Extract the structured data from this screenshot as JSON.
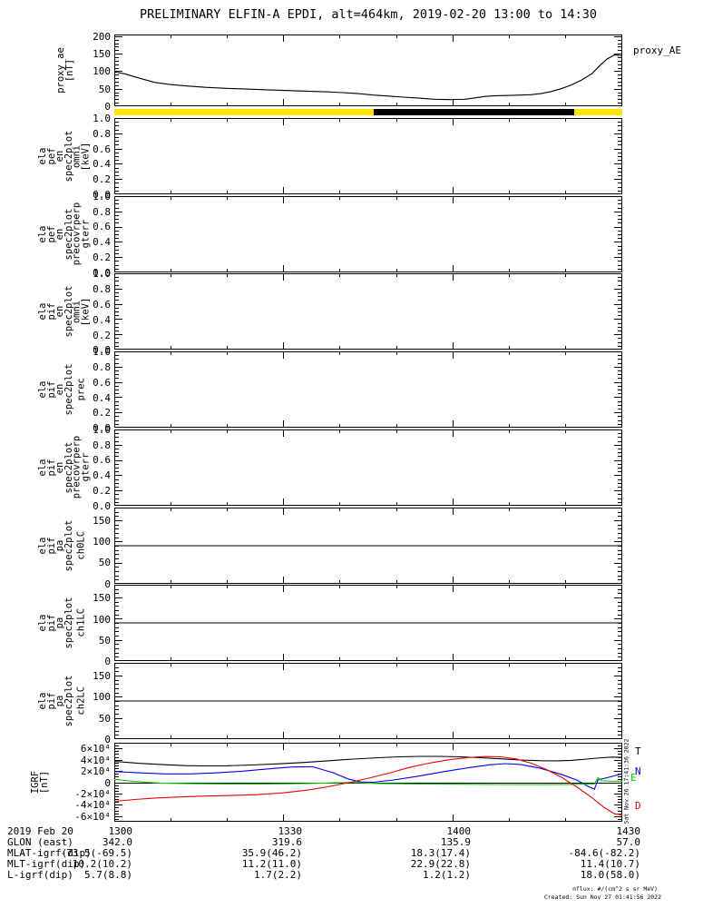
{
  "title": "PRELIMINARY ELFIN-A EPDI, alt=464km, 2019-02-20 13:00 to 14:30",
  "colors": {
    "axis": "#000000",
    "bar_yellow": "#ffe400",
    "bar_black": "#000000",
    "trace_black": "#000000",
    "trace_blue": "#0000ee",
    "trace_green": "#00cc00",
    "trace_red": "#ee0000"
  },
  "status_bar": {
    "segments": [
      {
        "color": "#ffe400",
        "from": 0.0,
        "to": 0.511
      },
      {
        "color": "#000000",
        "from": 0.511,
        "to": 0.905
      },
      {
        "color": "#ffe400",
        "from": 0.905,
        "to": 1.0
      }
    ]
  },
  "xaxis": {
    "tick_labels": [
      "1300",
      "1330",
      "1400",
      "1430"
    ],
    "major_fracs": [
      0,
      0.3333,
      0.6667,
      1
    ],
    "minor_divisions": 9
  },
  "vertical_timestamp": "Sat Nov 26 17:41:36 2022",
  "footer": {
    "row_labels": [
      "2019 Feb 20",
      "GLON (east)",
      "MLAT-igrf(dip)",
      "MLT-igrf(dip)",
      "L-igrf(dip)"
    ],
    "columns": [
      {
        "values": [
          "1300",
          "342.0",
          "-73.5(-69.5)",
          "10.2(10.2)",
          "5.7(8.8)"
        ]
      },
      {
        "values": [
          "1330",
          "319.6",
          "35.9(46.2)",
          "11.2(11.0)",
          "1.7(2.2)"
        ]
      },
      {
        "values": [
          "1400",
          "135.9",
          "18.3(17.4)",
          "22.9(22.8)",
          "1.2(1.2)"
        ]
      },
      {
        "values": [
          "1430",
          "57.0",
          "-84.6(-82.2)",
          "11.4(10.7)",
          "18.0(58.0)"
        ]
      }
    ],
    "nflux": "nflux: #/(cm^2 s sr MeV)",
    "created": "Created: Sun Nov 27 01:41:56 2022"
  },
  "chart_data": [
    {
      "id": "proxy_ae",
      "type": "line",
      "ylabel_lines": [
        "proxy_ae",
        "[nT]"
      ],
      "ylim": [
        0,
        205
      ],
      "ytick_values": [
        0,
        50,
        100,
        150,
        200
      ],
      "ytick_labels": [
        "0",
        "50",
        "100",
        "150",
        "200"
      ],
      "y_minor_step": 10,
      "legend": {
        "label": "proxy_AE",
        "color": "#000000"
      },
      "series": [
        {
          "name": "proxy_AE",
          "color": "#000000",
          "x": [
            0,
            0.02,
            0.05,
            0.08,
            0.11,
            0.14,
            0.18,
            0.22,
            0.26,
            0.3,
            0.34,
            0.38,
            0.42,
            0.45,
            0.48,
            0.51,
            0.54,
            0.57,
            0.6,
            0.63,
            0.66,
            0.69,
            0.71,
            0.73,
            0.75,
            0.78,
            0.8,
            0.82,
            0.84,
            0.86,
            0.88,
            0.9,
            0.92,
            0.94,
            0.955,
            0.97,
            0.985,
            1.0
          ],
          "y": [
            98,
            93,
            80,
            68,
            62,
            58,
            54,
            51,
            49,
            47,
            45,
            43,
            41,
            39,
            36,
            32,
            29,
            26,
            23,
            20,
            19,
            20,
            24,
            28,
            30,
            31,
            32,
            33,
            36,
            42,
            50,
            61,
            75,
            93,
            115,
            135,
            147,
            144
          ]
        }
      ]
    },
    {
      "id": "ela_pef_en_omni",
      "type": "spec2plot-empty",
      "ylabel_outer": [
        "ela",
        "pef",
        "en",
        "spec2plot"
      ],
      "ylabel_inner": [
        "omni",
        "[keV]"
      ],
      "ylim": [
        0,
        1
      ],
      "ytick_values": [
        0,
        0.2,
        0.4,
        0.6,
        0.8,
        1.0
      ],
      "ytick_labels": [
        "0.0",
        "0.2",
        "0.4",
        "0.6",
        "0.8",
        "1.0"
      ],
      "y_minor_step": 0.05,
      "series": []
    },
    {
      "id": "ela_pef_en_precovrperp_gterr",
      "type": "spec2plot-empty",
      "ylabel_outer": [
        "ela",
        "pef",
        "en",
        "spec2plot"
      ],
      "ylabel_inner": [
        "precovrperp",
        "gterr"
      ],
      "ylim": [
        0,
        1
      ],
      "ytick_values": [
        0,
        0.2,
        0.4,
        0.6,
        0.8,
        1.0
      ],
      "ytick_labels": [
        "0.0",
        "0.2",
        "0.4",
        "0.6",
        "0.8",
        "1.0"
      ],
      "y_minor_step": 0.05,
      "series": []
    },
    {
      "id": "ela_pif_en_omni",
      "type": "spec2plot-empty",
      "ylabel_outer": [
        "ela",
        "pif",
        "en",
        "spec2plot"
      ],
      "ylabel_inner": [
        "omni",
        "[keV]"
      ],
      "ylim": [
        0,
        1
      ],
      "ytick_values": [
        0,
        0.2,
        0.4,
        0.6,
        0.8,
        1.0
      ],
      "ytick_labels": [
        "0.0",
        "0.2",
        "0.4",
        "0.6",
        "0.8",
        "1.0"
      ],
      "y_minor_step": 0.05,
      "series": []
    },
    {
      "id": "ela_pif_en_prec",
      "type": "spec2plot-empty",
      "ylabel_outer": [
        "ela",
        "pif",
        "en",
        "spec2plot"
      ],
      "ylabel_inner": [
        "prec"
      ],
      "ylim": [
        0,
        1
      ],
      "ytick_values": [
        0,
        0.2,
        0.4,
        0.6,
        0.8,
        1.0
      ],
      "ytick_labels": [
        "0.0",
        "0.2",
        "0.4",
        "0.6",
        "0.8",
        "1.0"
      ],
      "y_minor_step": 0.05,
      "series": []
    },
    {
      "id": "ela_pif_en_precovrperp_gterr",
      "type": "spec2plot-empty",
      "ylabel_outer": [
        "ela",
        "pif",
        "en",
        "spec2plot"
      ],
      "ylabel_inner": [
        "precovrperp",
        "gterr"
      ],
      "ylim": [
        0,
        1
      ],
      "ytick_values": [
        0,
        0.2,
        0.4,
        0.6,
        0.8,
        1.0
      ],
      "ytick_labels": [
        "0.0",
        "0.2",
        "0.4",
        "0.6",
        "0.8",
        "1.0"
      ],
      "y_minor_step": 0.05,
      "series": []
    },
    {
      "id": "ela_pif_pa_ch0LC",
      "type": "line",
      "ylabel_outer": [
        "ela",
        "pif",
        "pa",
        "spec2plot"
      ],
      "ylabel_inner": [
        "ch0LC"
      ],
      "ylim": [
        0,
        180
      ],
      "ytick_values": [
        0,
        50,
        100,
        150
      ],
      "ytick_labels": [
        "0",
        "50",
        "100",
        "150"
      ],
      "y_minor_step": 10,
      "series": [
        {
          "name": "loss-cone-90deg",
          "color": "#000000",
          "x": [
            0,
            1
          ],
          "y": [
            90,
            90
          ]
        }
      ]
    },
    {
      "id": "ela_pif_pa_ch1LC",
      "type": "line",
      "ylabel_outer": [
        "ela",
        "pif",
        "pa",
        "spec2plot"
      ],
      "ylabel_inner": [
        "ch1LC"
      ],
      "ylim": [
        0,
        180
      ],
      "ytick_values": [
        0,
        50,
        100,
        150
      ],
      "ytick_labels": [
        "0",
        "50",
        "100",
        "150"
      ],
      "y_minor_step": 10,
      "series": [
        {
          "name": "loss-cone-90deg",
          "color": "#000000",
          "x": [
            0,
            1
          ],
          "y": [
            90,
            90
          ]
        }
      ]
    },
    {
      "id": "ela_pif_pa_ch2LC",
      "type": "line",
      "ylabel_outer": [
        "ela",
        "pif",
        "pa",
        "spec2plot"
      ],
      "ylabel_inner": [
        "ch2LC"
      ],
      "ylim": [
        0,
        180
      ],
      "ytick_values": [
        0,
        50,
        100,
        150
      ],
      "ytick_labels": [
        "0",
        "50",
        "100",
        "150"
      ],
      "y_minor_step": 10,
      "series": [
        {
          "name": "loss-cone-90deg",
          "color": "#000000",
          "x": [
            0,
            1
          ],
          "y": [
            90,
            90
          ]
        }
      ]
    },
    {
      "id": "igrf",
      "type": "line",
      "ylabel_lines": [
        "IGRF",
        "[nT]"
      ],
      "ylim": [
        -70000,
        70000
      ],
      "ytick_values": [
        -60000,
        -40000,
        -20000,
        0,
        20000,
        40000,
        60000
      ],
      "ytick_labels": [
        "-6×10⁴",
        "-4×10⁴",
        "-2×10⁴",
        "0",
        "2×10⁴",
        "4×10⁴",
        "6×10⁴"
      ],
      "y_minor_step": 5000,
      "zero_line": true,
      "legend_entries": [
        {
          "label": "T",
          "color": "#000000"
        },
        {
          "label": "N",
          "color": "#0000ee"
        },
        {
          "label": "E",
          "color": "#00cc00"
        },
        {
          "label": "D",
          "color": "#ee0000"
        }
      ],
      "series": [
        {
          "name": "T",
          "color": "#000000",
          "x": [
            0,
            0.05,
            0.1,
            0.14,
            0.18,
            0.22,
            0.27,
            0.32,
            0.37,
            0.42,
            0.47,
            0.52,
            0.56,
            0.6,
            0.64,
            0.68,
            0.72,
            0.76,
            0.8,
            0.84,
            0.87,
            0.9,
            0.93,
            0.96,
            0.98,
            1.0
          ],
          "y": [
            37000,
            33500,
            31000,
            29500,
            29000,
            29200,
            30500,
            32500,
            35000,
            38000,
            41000,
            43500,
            45000,
            45800,
            45800,
            45000,
            43500,
            41500,
            39500,
            38200,
            38000,
            38800,
            41000,
            43500,
            44500,
            44000
          ]
        },
        {
          "name": "N",
          "color": "#0000ee",
          "x": [
            0,
            0.05,
            0.1,
            0.15,
            0.2,
            0.25,
            0.3,
            0.35,
            0.39,
            0.43,
            0.46,
            0.485,
            0.51,
            0.55,
            0.6,
            0.65,
            0.7,
            0.74,
            0.77,
            0.8,
            0.84,
            0.88,
            0.91,
            0.93,
            0.945,
            0.952,
            0.97,
            1.0
          ],
          "y": [
            19000,
            16500,
            14800,
            14800,
            16500,
            19500,
            23500,
            27000,
            27500,
            17000,
            6000,
            500,
            0,
            4000,
            11000,
            19000,
            26000,
            31000,
            33000,
            31500,
            24500,
            14000,
            4000,
            -6000,
            -12500,
            4000,
            8000,
            15000
          ]
        },
        {
          "name": "E",
          "color": "#00cc00",
          "x": [
            0,
            0.04,
            0.09,
            0.15,
            0.22,
            0.3,
            0.38,
            0.44,
            0.475,
            0.52,
            0.6,
            0.68,
            0.76,
            0.84,
            0.9,
            0.935,
            0.945,
            0.952,
            0.96,
            0.98,
            1.0
          ],
          "y": [
            5000,
            1500,
            -1500,
            -2500,
            -3000,
            -3000,
            -2200,
            -800,
            -300,
            -2200,
            -3200,
            -3500,
            -4000,
            -4200,
            -3800,
            -3000,
            -3000,
            8000,
            2500,
            2000,
            2000
          ]
        },
        {
          "name": "D",
          "color": "#ee0000",
          "x": [
            0,
            0.04,
            0.08,
            0.13,
            0.18,
            0.23,
            0.28,
            0.33,
            0.38,
            0.42,
            0.46,
            0.5,
            0.54,
            0.58,
            0.62,
            0.66,
            0.7,
            0.73,
            0.76,
            0.79,
            0.82,
            0.85,
            0.88,
            0.91,
            0.94,
            0.965,
            0.985,
            1.0
          ],
          "y": [
            -34000,
            -30500,
            -28000,
            -26000,
            -24500,
            -23500,
            -22000,
            -19000,
            -14000,
            -8000,
            -1000,
            7000,
            16000,
            26000,
            34000,
            40000,
            44000,
            45500,
            45000,
            41500,
            34000,
            23000,
            9000,
            -8000,
            -27000,
            -45000,
            -56000,
            -58000
          ]
        }
      ]
    }
  ]
}
